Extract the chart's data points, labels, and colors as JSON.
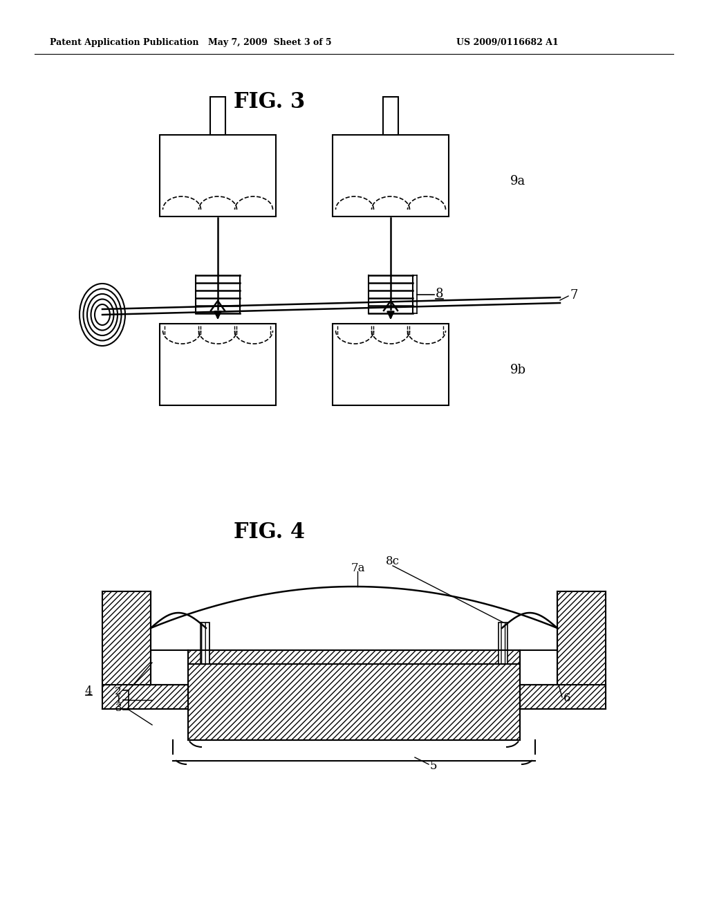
{
  "header_left": "Patent Application Publication",
  "header_mid": "May 7, 2009  Sheet 3 of 5",
  "header_right": "US 2009/0116682 A1",
  "fig3_title": "FIG. 3",
  "fig4_title": "FIG. 4",
  "bg_color": "#ffffff",
  "line_color": "#000000"
}
